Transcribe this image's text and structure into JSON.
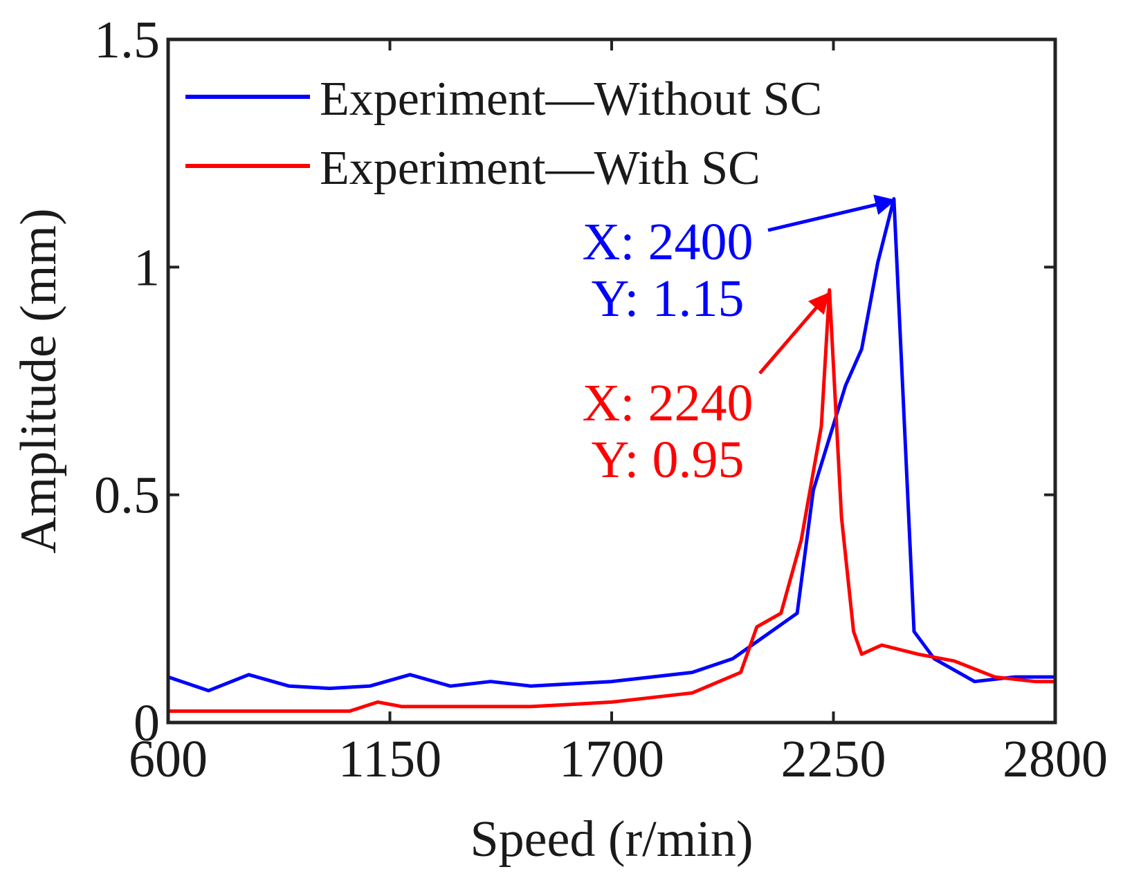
{
  "chart_data": {
    "type": "line",
    "title": "",
    "xlabel": "Speed (r/min)",
    "ylabel": "Amplitude (mm)",
    "xlim": [
      600,
      2800
    ],
    "ylim": [
      0,
      1.5
    ],
    "xticks": [
      600,
      1150,
      1700,
      2250,
      2800
    ],
    "xtick_labels": [
      "600",
      "1150",
      "1700",
      "2250",
      "2800"
    ],
    "yticks": [
      0,
      0.5,
      1,
      1.5
    ],
    "ytick_labels": [
      "0",
      "0.5",
      "1",
      "1.5"
    ],
    "grid": false,
    "legend_position": "top-left",
    "series": [
      {
        "name": "Experiment—Without SC",
        "color": "#0000ff",
        "x": [
          600,
          700,
          800,
          900,
          1000,
          1100,
          1200,
          1300,
          1400,
          1500,
          1600,
          1700,
          1800,
          1900,
          2000,
          2080,
          2160,
          2200,
          2280,
          2320,
          2360,
          2400,
          2450,
          2500,
          2600,
          2700,
          2800
        ],
        "y": [
          0.1,
          0.07,
          0.105,
          0.08,
          0.075,
          0.08,
          0.105,
          0.08,
          0.09,
          0.08,
          0.085,
          0.09,
          0.1,
          0.11,
          0.14,
          0.19,
          0.24,
          0.51,
          0.74,
          0.82,
          1.01,
          1.15,
          0.2,
          0.14,
          0.09,
          0.1,
          0.1
        ]
      },
      {
        "name": "Experiment—With SC",
        "color": "#ff0000",
        "x": [
          600,
          700,
          800,
          900,
          1000,
          1050,
          1120,
          1180,
          1300,
          1400,
          1500,
          1600,
          1700,
          1800,
          1900,
          2020,
          2060,
          2120,
          2170,
          2220,
          2240,
          2270,
          2300,
          2320,
          2370,
          2460,
          2550,
          2650,
          2750,
          2800
        ],
        "y": [
          0.025,
          0.025,
          0.025,
          0.025,
          0.025,
          0.025,
          0.045,
          0.035,
          0.035,
          0.035,
          0.035,
          0.04,
          0.045,
          0.055,
          0.065,
          0.11,
          0.21,
          0.24,
          0.4,
          0.65,
          0.95,
          0.45,
          0.2,
          0.15,
          0.17,
          0.15,
          0.135,
          0.1,
          0.09,
          0.09
        ]
      }
    ],
    "annotations": [
      {
        "x_label": "X: 2400",
        "y_label": "Y: 1.15",
        "target_x": 2400,
        "target_y": 1.15,
        "color": "#0000ff"
      },
      {
        "x_label": "X: 2240",
        "y_label": "Y: 0.95",
        "target_x": 2240,
        "target_y": 0.95,
        "color": "#ff0000"
      }
    ]
  }
}
